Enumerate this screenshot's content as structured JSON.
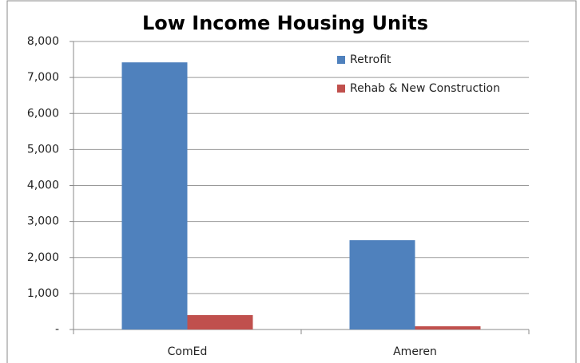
{
  "chart_data": {
    "type": "bar",
    "title": "Low Income Housing Units",
    "categories": [
      "ComEd",
      "Ameren"
    ],
    "series": [
      {
        "name": "Retrofit",
        "color": "#4f81bd",
        "values": [
          7420,
          2480
        ]
      },
      {
        "name": "Rehab & New Construction",
        "color": "#c0504d",
        "values": [
          400,
          90
        ]
      }
    ],
    "ylim": [
      0,
      8000
    ],
    "yticks": [
      {
        "value": 0,
        "label": "-"
      },
      {
        "value": 1000,
        "label": "1,000"
      },
      {
        "value": 2000,
        "label": "2,000"
      },
      {
        "value": 3000,
        "label": "3,000"
      },
      {
        "value": 4000,
        "label": "4,000"
      },
      {
        "value": 5000,
        "label": "5,000"
      },
      {
        "value": 6000,
        "label": "6,000"
      },
      {
        "value": 7000,
        "label": "7,000"
      },
      {
        "value": 8000,
        "label": "8,000"
      }
    ],
    "grid": true,
    "legend": "top-right"
  }
}
